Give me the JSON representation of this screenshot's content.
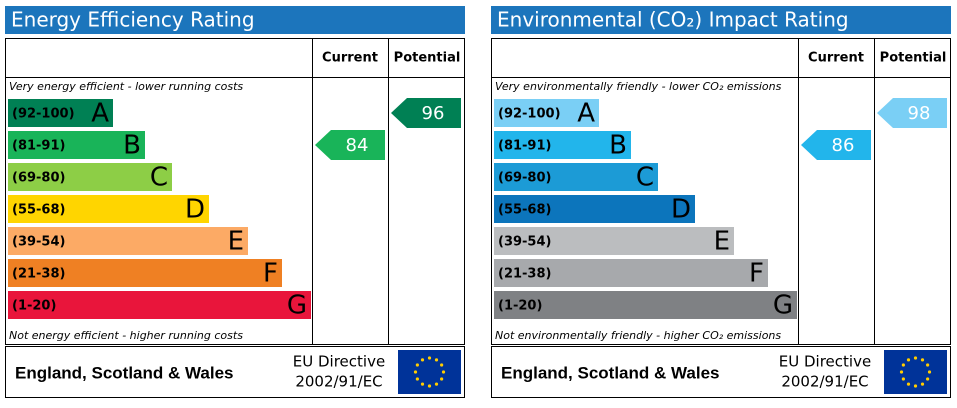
{
  "panels": [
    {
      "title": "Energy Efficiency Rating",
      "headers": [
        "Current",
        "Potential"
      ],
      "top_note": "Very energy efficient - lower running costs",
      "bottom_note": "Not energy efficient - higher running costs",
      "bands": [
        {
          "range": "(92-100)",
          "letter": "A",
          "color": "#008054"
        },
        {
          "range": "(81-91)",
          "letter": "B",
          "color": "#19b459"
        },
        {
          "range": "(69-80)",
          "letter": "C",
          "color": "#8dce46"
        },
        {
          "range": "(55-68)",
          "letter": "D",
          "color": "#ffd500"
        },
        {
          "range": "(39-54)",
          "letter": "E",
          "color": "#fcaa65"
        },
        {
          "range": "(21-38)",
          "letter": "F",
          "color": "#ef8023"
        },
        {
          "range": "(1-20)",
          "letter": "G",
          "color": "#e9153b"
        }
      ],
      "current": 84,
      "potential": 96,
      "footer": "England, Scotland & Wales",
      "directive": [
        "EU Directive",
        "2002/91/EC"
      ]
    },
    {
      "title": "Environmental (CO₂) Impact Rating",
      "headers": [
        "Current",
        "Potential"
      ],
      "top_note": "Very environmentally friendly - lower CO₂ emissions",
      "bottom_note": "Not environmentally friendly - higher CO₂ emissions",
      "bands": [
        {
          "range": "(92-100)",
          "letter": "A",
          "color": "#7acff5"
        },
        {
          "range": "(81-91)",
          "letter": "B",
          "color": "#22b5eb"
        },
        {
          "range": "(69-80)",
          "letter": "C",
          "color": "#1c9bd6"
        },
        {
          "range": "(55-68)",
          "letter": "D",
          "color": "#0c75bc"
        },
        {
          "range": "(39-54)",
          "letter": "E",
          "color": "#bbbdbf"
        },
        {
          "range": "(21-38)",
          "letter": "F",
          "color": "#a7a9ac"
        },
        {
          "range": "(1-20)",
          "letter": "G",
          "color": "#7f8184"
        }
      ],
      "current": 86,
      "potential": 98,
      "footer": "England, Scotland & Wales",
      "directive": [
        "EU Directive",
        "2002/91/EC"
      ]
    }
  ]
}
